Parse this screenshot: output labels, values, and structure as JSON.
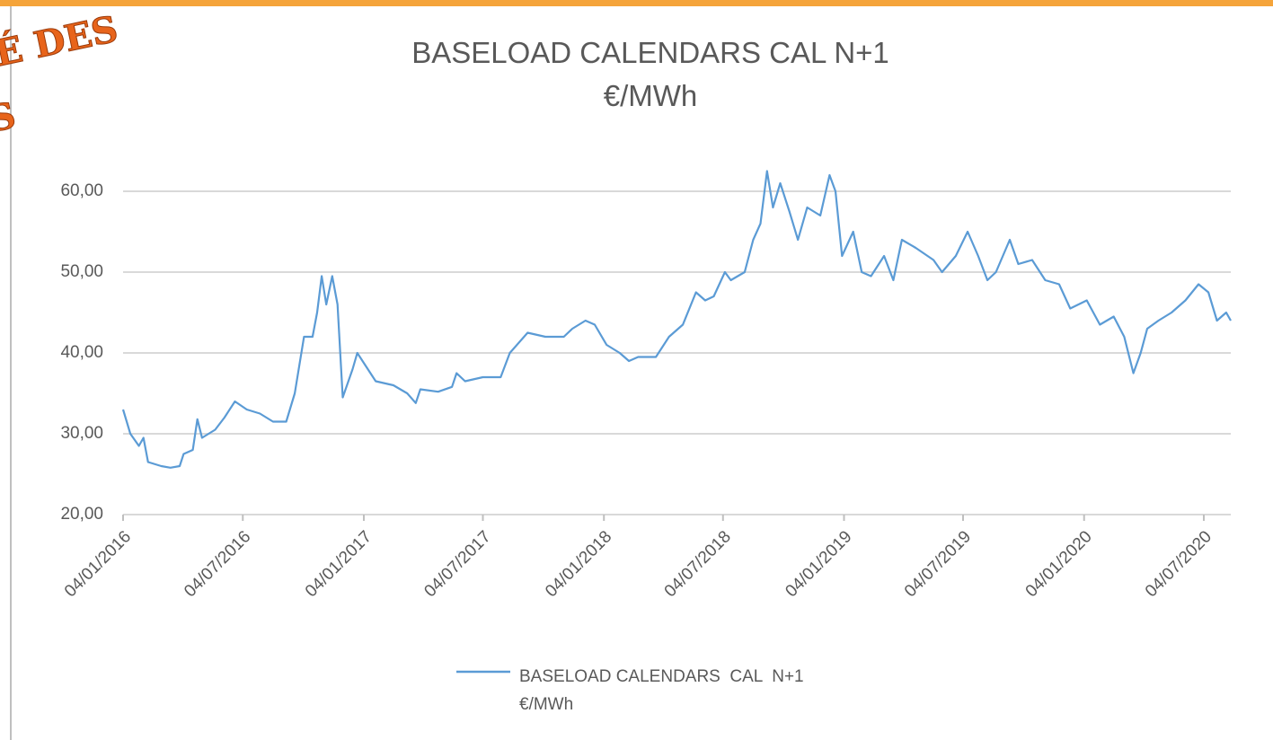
{
  "logo_fragment": [
    "É DES",
    "S"
  ],
  "chart_data": {
    "type": "line",
    "title": "BASELOAD CALENDARS  CAL  N+1",
    "subtitle": "€/MWh",
    "xlim": [
      "2016-01-04",
      "2020-08-14"
    ],
    "xticks": [
      {
        "value": "2016-01-04",
        "label": "04/01/2016"
      },
      {
        "value": "2016-07-04",
        "label": "04/07/2016"
      },
      {
        "value": "2017-01-04",
        "label": "04/01/2017"
      },
      {
        "value": "2017-07-04",
        "label": "04/07/2017"
      },
      {
        "value": "2018-01-04",
        "label": "04/01/2018"
      },
      {
        "value": "2018-07-04",
        "label": "04/07/2018"
      },
      {
        "value": "2019-01-04",
        "label": "04/01/2019"
      },
      {
        "value": "2019-07-04",
        "label": "04/07/2019"
      },
      {
        "value": "2020-01-04",
        "label": "04/01/2020"
      },
      {
        "value": "2020-07-04",
        "label": "04/07/2020"
      }
    ],
    "ylim": [
      20,
      65
    ],
    "yticks": [
      {
        "value": 20,
        "label": "20,00"
      },
      {
        "value": 30,
        "label": "30,00"
      },
      {
        "value": 40,
        "label": "40,00"
      },
      {
        "value": 50,
        "label": "50,00"
      },
      {
        "value": 60,
        "label": "60,00"
      }
    ],
    "grid": true,
    "legend": "bottom",
    "x": [
      "2016-01-04",
      "2016-01-15",
      "2016-01-28",
      "2016-02-04",
      "2016-02-11",
      "2016-03-02",
      "2016-03-16",
      "2016-03-30",
      "2016-04-05",
      "2016-04-19",
      "2016-04-26",
      "2016-05-03",
      "2016-05-23",
      "2016-06-06",
      "2016-06-22",
      "2016-07-10",
      "2016-07-30",
      "2016-08-19",
      "2016-09-08",
      "2016-09-21",
      "2016-10-05",
      "2016-10-18",
      "2016-10-25",
      "2016-11-01",
      "2016-11-08",
      "2016-11-17",
      "2016-11-25",
      "2016-12-03",
      "2016-12-18",
      "2016-12-25",
      "2017-01-22",
      "2017-02-18",
      "2017-03-11",
      "2017-03-24",
      "2017-03-31",
      "2017-04-27",
      "2017-05-18",
      "2017-05-25",
      "2017-06-07",
      "2017-07-04",
      "2017-07-31",
      "2017-08-14",
      "2017-09-10",
      "2017-10-07",
      "2017-11-04",
      "2017-11-17",
      "2017-12-07",
      "2017-12-21",
      "2018-01-08",
      "2018-01-28",
      "2018-02-11",
      "2018-02-25",
      "2018-03-24",
      "2018-04-13",
      "2018-05-04",
      "2018-05-24",
      "2018-06-07",
      "2018-06-20",
      "2018-07-07",
      "2018-07-16",
      "2018-08-06",
      "2018-08-19",
      "2018-08-30",
      "2018-09-09",
      "2018-09-18",
      "2018-09-29",
      "2018-10-13",
      "2018-10-26",
      "2018-11-09",
      "2018-11-29",
      "2018-12-13",
      "2018-12-22",
      "2019-01-01",
      "2019-01-18",
      "2019-01-31",
      "2019-02-14",
      "2019-03-06",
      "2019-03-20",
      "2019-04-02",
      "2019-04-23",
      "2019-05-20",
      "2019-06-02",
      "2019-06-23",
      "2019-07-11",
      "2019-07-27",
      "2019-08-10",
      "2019-08-23",
      "2019-09-13",
      "2019-09-26",
      "2019-10-17",
      "2019-11-06",
      "2019-11-27",
      "2019-12-14",
      "2020-01-08",
      "2020-01-28",
      "2020-02-18",
      "2020-03-05",
      "2020-03-19",
      "2020-03-30",
      "2020-04-09",
      "2020-04-26",
      "2020-05-16",
      "2020-06-06",
      "2020-06-26",
      "2020-07-11",
      "2020-07-24",
      "2020-08-07",
      "2020-08-14"
    ],
    "series": [
      {
        "name": "BASELOAD CALENDARS  CAL  N+1 €/MWh",
        "color": "#5b9bd5",
        "values": [
          33,
          30,
          28.5,
          29.5,
          26.5,
          26,
          25.8,
          26,
          27.5,
          28,
          31.8,
          29.5,
          30.5,
          32,
          34,
          33,
          32.5,
          31.5,
          31.5,
          35,
          42,
          42,
          45,
          49.5,
          46,
          49.5,
          46,
          34.5,
          38,
          40,
          36.5,
          36,
          35,
          33.8,
          35.5,
          35.2,
          35.8,
          37.5,
          36.5,
          37,
          37,
          40,
          42.5,
          42,
          42,
          43,
          44,
          43.5,
          41,
          40,
          39,
          39.5,
          39.5,
          42,
          43.5,
          47.5,
          46.5,
          47,
          50,
          49,
          50,
          54,
          56,
          62.5,
          58,
          61,
          57.5,
          54,
          58,
          57,
          62,
          60,
          52,
          55,
          50,
          49.5,
          52,
          49,
          54,
          53,
          51.5,
          50,
          52,
          55,
          52,
          49,
          50,
          54,
          51,
          51.5,
          49,
          48.5,
          45.5,
          46.5,
          43.5,
          44.5,
          42,
          37.5,
          40,
          43,
          44,
          45,
          46.5,
          48.5,
          47.5,
          44,
          45,
          44
        ]
      }
    ]
  }
}
